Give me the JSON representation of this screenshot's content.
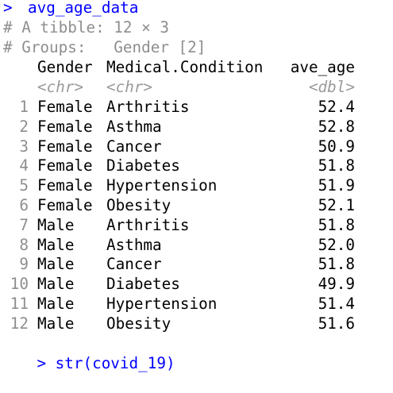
{
  "console": {
    "prompt_symbol": ">",
    "command": "avg_age_data",
    "tibble_info": "# A tibble: 12 × 3",
    "groups_info": "# Groups:   Gender [2]",
    "columns": [
      "Gender",
      "Medical.Condition",
      "ave_age"
    ],
    "column_types": [
      "<chr>",
      "<chr>",
      "<dbl>"
    ],
    "rows": [
      {
        "num": "1",
        "gender": "Female",
        "condition": "Arthritis",
        "age": "52.4"
      },
      {
        "num": "2",
        "gender": "Female",
        "condition": "Asthma",
        "age": "52.8"
      },
      {
        "num": "3",
        "gender": "Female",
        "condition": "Cancer",
        "age": "50.9"
      },
      {
        "num": "4",
        "gender": "Female",
        "condition": "Diabetes",
        "age": "51.8"
      },
      {
        "num": "5",
        "gender": "Female",
        "condition": "Hypertension",
        "age": "51.9"
      },
      {
        "num": "6",
        "gender": "Female",
        "condition": "Obesity",
        "age": "52.1"
      },
      {
        "num": "7",
        "gender": "Male",
        "condition": "Arthritis",
        "age": "51.8"
      },
      {
        "num": "8",
        "gender": "Male",
        "condition": "Asthma",
        "age": "52.0"
      },
      {
        "num": "9",
        "gender": "Male",
        "condition": "Cancer",
        "age": "51.8"
      },
      {
        "num": "10",
        "gender": "Male",
        "condition": "Diabetes",
        "age": "49.9"
      },
      {
        "num": "11",
        "gender": "Male",
        "condition": "Hypertension",
        "age": "51.4"
      },
      {
        "num": "12",
        "gender": "Male",
        "condition": "Obesity",
        "age": "51.6"
      }
    ],
    "next_command_partial": "> str(covid_19)"
  },
  "colors": {
    "command_blue": "#0000ff",
    "meta_gray": "#8e8e8e",
    "background": "#ffffff"
  }
}
